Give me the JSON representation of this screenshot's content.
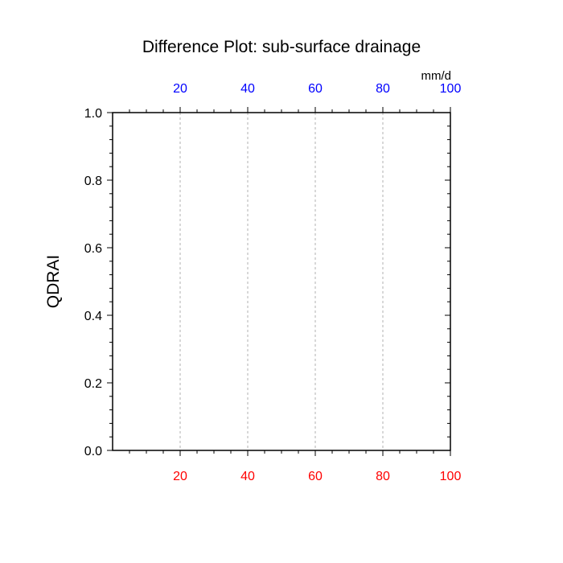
{
  "chart_data": {
    "type": "line",
    "title": "Difference Plot: sub-surface drainage",
    "ylabel": "QDRAI",
    "units": "mm/d",
    "series": [],
    "xlim": [
      0,
      100
    ],
    "ylim": [
      0,
      1
    ],
    "bottom_axis": {
      "tick_values": [
        20,
        40,
        60,
        80,
        100
      ],
      "tick_labels": [
        "20",
        "40",
        "60",
        "80",
        "100"
      ],
      "color": "#ff0000"
    },
    "top_axis": {
      "tick_values": [
        20,
        40,
        60,
        80,
        100
      ],
      "tick_labels": [
        "20",
        "40",
        "60",
        "80",
        "100"
      ],
      "color": "#0000ff"
    },
    "left_axis": {
      "tick_values": [
        0,
        0.2,
        0.4,
        0.6,
        0.8,
        1.0
      ],
      "tick_labels": [
        "0.0",
        "0.2",
        "0.4",
        "0.6",
        "0.8",
        "1.0"
      ],
      "color": "#000000"
    },
    "vertical_gridlines_at": [
      20,
      40,
      60,
      80
    ],
    "grid": "vertical dashed"
  }
}
